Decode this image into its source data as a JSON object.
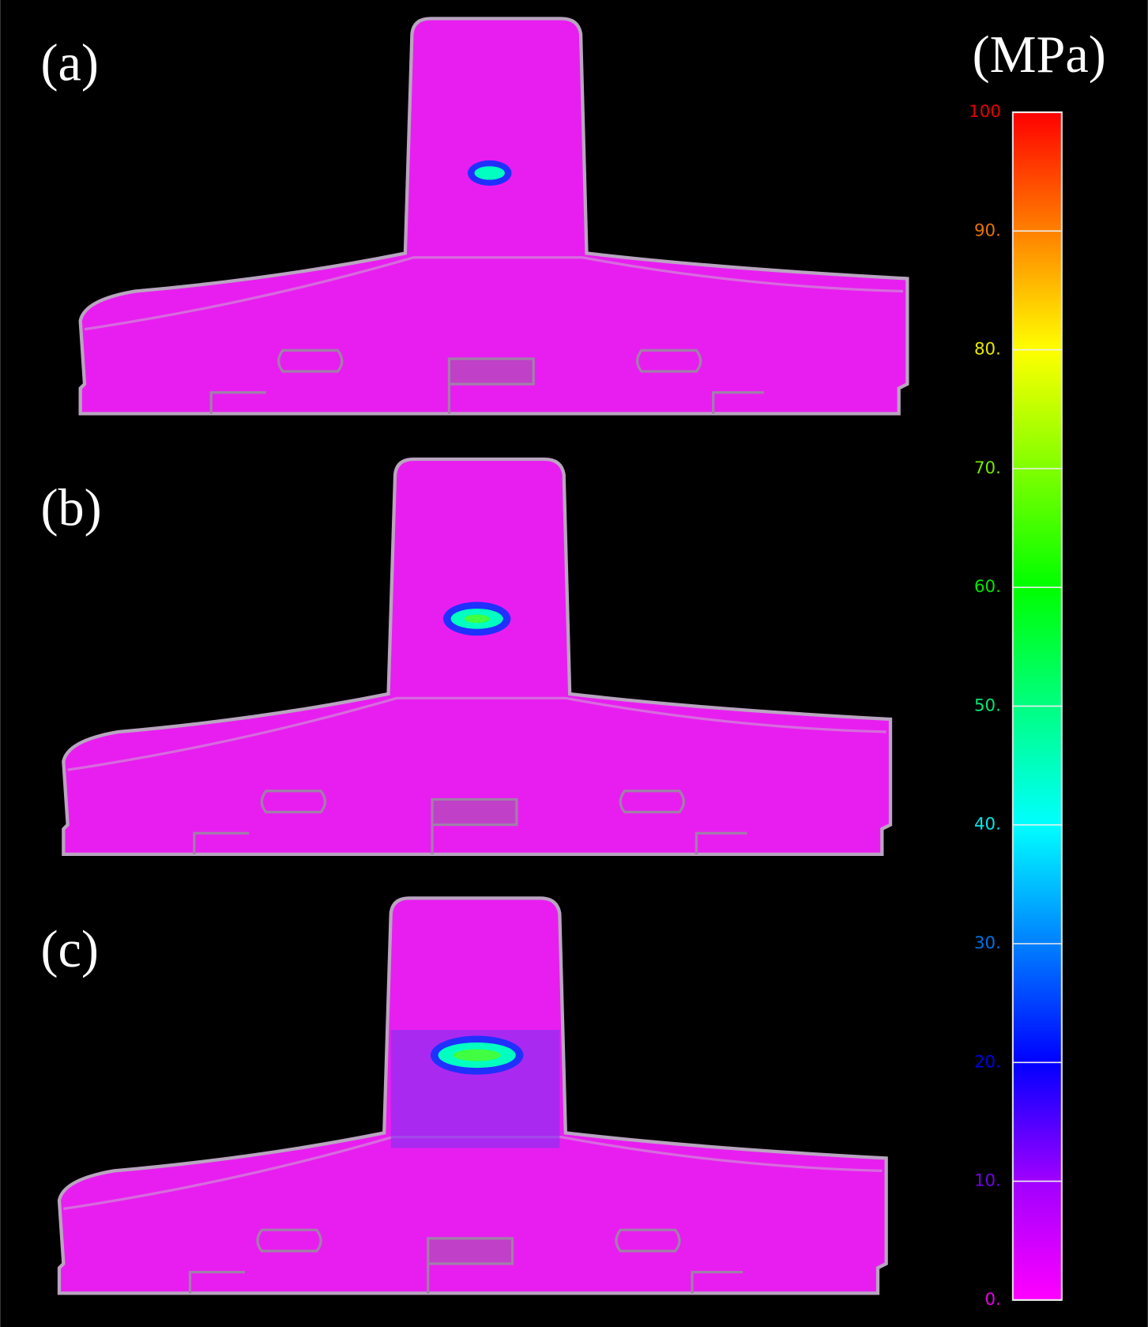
{
  "panels": [
    {
      "label": "(a)"
    },
    {
      "label": "(b)"
    },
    {
      "label": "(c)"
    }
  ],
  "colorbar": {
    "unit": "(MPa)",
    "min": 0,
    "max": 100,
    "ticks": [
      {
        "value": 0,
        "label": "0."
      },
      {
        "value": 10,
        "label": "10."
      },
      {
        "value": 20,
        "label": "20."
      },
      {
        "value": 30,
        "label": "30."
      },
      {
        "value": 40,
        "label": "40."
      },
      {
        "value": 50,
        "label": "50."
      },
      {
        "value": 60,
        "label": "60."
      },
      {
        "value": 70,
        "label": "70."
      },
      {
        "value": 80,
        "label": "80."
      },
      {
        "value": 90,
        "label": "90."
      },
      {
        "value": 100,
        "label": "100"
      }
    ]
  }
}
